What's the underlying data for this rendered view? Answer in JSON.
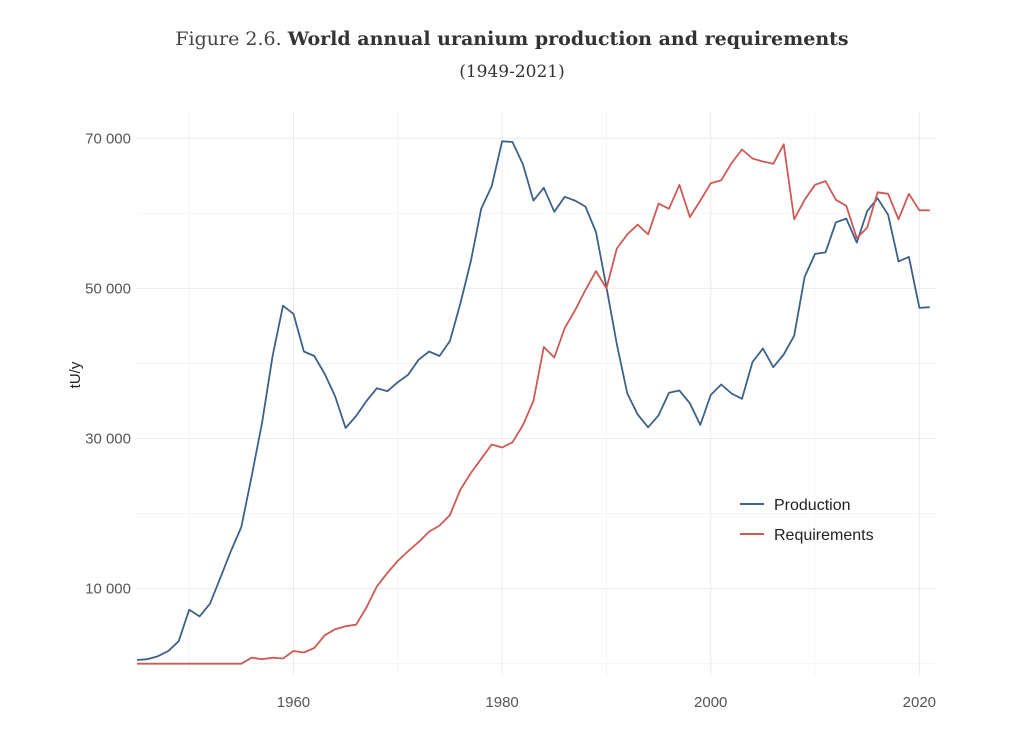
{
  "figure": {
    "label": "Figure 2.6.",
    "title": "World annual uranium production and requirements",
    "subtitle": "(1949-2021)"
  },
  "chart_data": {
    "type": "line",
    "title": "World annual uranium production and requirements",
    "subtitle": "(1949-2021)",
    "xlabel": "",
    "ylabel": "tU/y",
    "xlim": [
      1945,
      2021.5
    ],
    "ylim": [
      -1500,
      73500
    ],
    "x_ticks": [
      1960,
      1980,
      2000,
      2020
    ],
    "x_tick_labels": [
      "1960",
      "1980",
      "2000",
      "2020"
    ],
    "y_ticks": [
      10000,
      30000,
      50000,
      70000
    ],
    "y_tick_labels": [
      "10 000",
      "30 000",
      "50 000",
      "70 000"
    ],
    "grid": true,
    "legend_position": "right-center",
    "colors": {
      "production": "#3d6189",
      "requirements": "#cd5a55"
    },
    "series": [
      {
        "name": "Production",
        "color": "#3d6189",
        "x": [
          1945,
          1946,
          1947,
          1948,
          1949,
          1950,
          1951,
          1952,
          1953,
          1954,
          1955,
          1956,
          1957,
          1958,
          1959,
          1960,
          1961,
          1962,
          1963,
          1964,
          1965,
          1966,
          1967,
          1968,
          1969,
          1970,
          1971,
          1972,
          1973,
          1974,
          1975,
          1976,
          1977,
          1978,
          1979,
          1980,
          1981,
          1982,
          1983,
          1984,
          1985,
          1986,
          1987,
          1988,
          1989,
          1990,
          1991,
          1992,
          1993,
          1994,
          1995,
          1996,
          1997,
          1998,
          1999,
          2000,
          2001,
          2002,
          2003,
          2004,
          2005,
          2006,
          2007,
          2008,
          2009,
          2010,
          2011,
          2012,
          2013,
          2014,
          2015,
          2016,
          2017,
          2018,
          2019,
          2020,
          2021
        ],
        "values": [
          500,
          600,
          1000,
          1700,
          3000,
          7200,
          6300,
          8000,
          11500,
          15000,
          18200,
          25000,
          32200,
          41000,
          47700,
          46600,
          41600,
          41000,
          38600,
          35600,
          31400,
          33000,
          35000,
          36700,
          36300,
          37500,
          38500,
          40500,
          41600,
          41000,
          43000,
          48000,
          53600,
          60600,
          63600,
          69600,
          69500,
          66500,
          61700,
          63400,
          60200,
          62200,
          61700,
          60900,
          57500,
          50200,
          42600,
          36000,
          33200,
          31500,
          33100,
          36100,
          36400,
          34700,
          31800,
          35800,
          37200,
          36000,
          35300,
          40200,
          42000,
          39500,
          41200,
          43700,
          51500,
          54600,
          54800,
          58800,
          59300,
          56100,
          60300,
          62000,
          59800,
          53600,
          54200,
          47400,
          47500
        ]
      },
      {
        "name": "Requirements",
        "color": "#cd5a55",
        "x": [
          1945,
          1946,
          1947,
          1948,
          1949,
          1950,
          1951,
          1952,
          1953,
          1954,
          1955,
          1956,
          1957,
          1958,
          1959,
          1960,
          1961,
          1962,
          1963,
          1964,
          1965,
          1966,
          1967,
          1968,
          1969,
          1970,
          1971,
          1972,
          1973,
          1974,
          1975,
          1976,
          1977,
          1978,
          1979,
          1980,
          1981,
          1982,
          1983,
          1984,
          1985,
          1986,
          1987,
          1988,
          1989,
          1990,
          1991,
          1992,
          1993,
          1994,
          1995,
          1996,
          1997,
          1998,
          1999,
          2000,
          2001,
          2002,
          2003,
          2004,
          2005,
          2006,
          2007,
          2008,
          2009,
          2010,
          2011,
          2012,
          2013,
          2014,
          2015,
          2016,
          2017,
          2018,
          2019,
          2020,
          2021
        ],
        "values": [
          0,
          0,
          0,
          0,
          0,
          0,
          0,
          0,
          0,
          0,
          0,
          800,
          600,
          800,
          700,
          1700,
          1500,
          2100,
          3800,
          4600,
          5000,
          5200,
          7500,
          10300,
          12100,
          13700,
          15000,
          16200,
          17600,
          18400,
          19800,
          23200,
          25400,
          27300,
          29200,
          28800,
          29500,
          31800,
          35000,
          42200,
          40800,
          44700,
          47100,
          49800,
          52300,
          50000,
          55300,
          57200,
          58500,
          57200,
          61300,
          60600,
          63800,
          59500,
          61700,
          64000,
          64400,
          66700,
          68500,
          67300,
          66900,
          66600,
          69200,
          59200,
          61800,
          63800,
          64300,
          61800,
          61000,
          56700,
          58100,
          62800,
          62600,
          59200,
          62600,
          60400,
          60400
        ]
      }
    ]
  }
}
